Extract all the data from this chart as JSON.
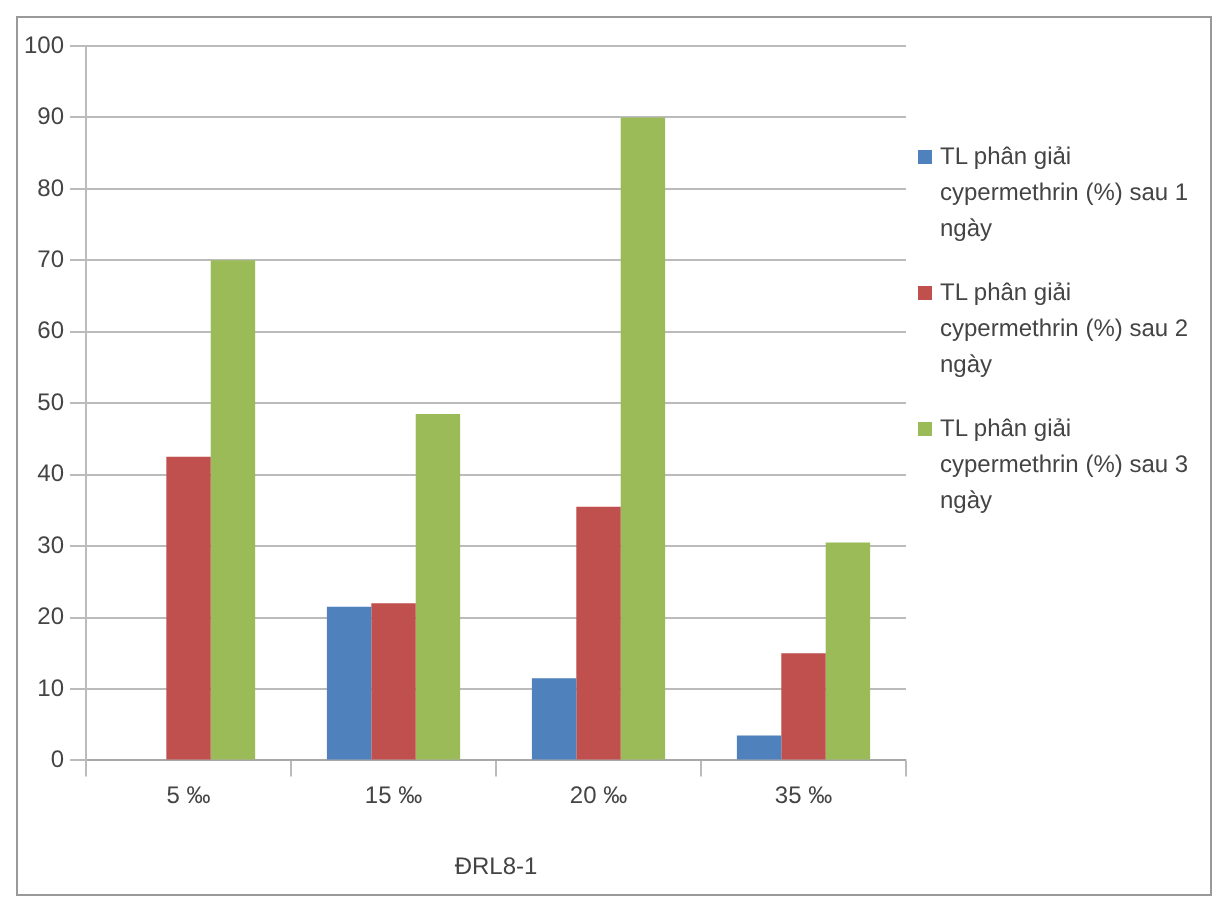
{
  "chart_data": {
    "type": "bar",
    "xlabel": "ĐRL8-1",
    "categories": [
      "5 ‰",
      "15 ‰",
      "20 ‰",
      "35 ‰"
    ],
    "series": [
      {
        "name": "TL phân giải cypermethrin (%) sau 1 ngày",
        "color": "#4f81bd",
        "values": [
          0,
          21.5,
          11.5,
          3.5
        ]
      },
      {
        "name": "TL phân giải cypermethrin (%) sau 2 ngày",
        "color": "#c0504d",
        "values": [
          42.5,
          22,
          35.5,
          15
        ]
      },
      {
        "name": "TL phân giải cypermethrin (%) sau 3 ngày",
        "color": "#9bbb59",
        "values": [
          70,
          48.5,
          90,
          30.5
        ]
      }
    ],
    "ylim": [
      0,
      100
    ],
    "yticks": [
      0,
      10,
      20,
      30,
      40,
      50,
      60,
      70,
      80,
      90,
      100
    ],
    "grid": "y",
    "legend": "right"
  }
}
